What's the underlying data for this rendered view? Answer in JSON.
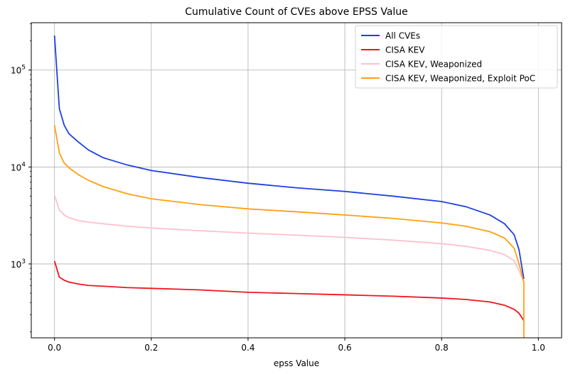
{
  "chart_data": {
    "type": "line",
    "title": "Cumulative Count of CVEs above EPSS Value",
    "xlabel": "epss Value",
    "ylabel": "",
    "xlim": [
      -0.048,
      1.048
    ],
    "ylim": [
      173,
      308000
    ],
    "yscale": "log",
    "grid": true,
    "legend_placement": "top-right",
    "xticks": [
      0.0,
      0.2,
      0.4,
      0.6,
      0.8,
      1.0
    ],
    "xtick_labels": [
      "0.0",
      "0.2",
      "0.4",
      "0.6",
      "0.8",
      "1.0"
    ],
    "yticks": [
      1000,
      10000,
      100000
    ],
    "ytick_labels": [
      {
        "base": "10",
        "exp": "3"
      },
      {
        "base": "10",
        "exp": "4"
      },
      {
        "base": "10",
        "exp": "5"
      }
    ],
    "x": [
      0,
      0.01,
      0.02,
      0.03,
      0.05,
      0.07,
      0.1,
      0.15,
      0.2,
      0.3,
      0.4,
      0.5,
      0.6,
      0.7,
      0.8,
      0.85,
      0.9,
      0.93,
      0.95,
      0.96,
      0.97
    ],
    "series": [
      {
        "name": "All CVEs",
        "color": "#1f3fe0",
        "values": [
          227000,
          40000,
          27000,
          22000,
          18000,
          15000,
          12500,
          10500,
          9200,
          7800,
          6800,
          6100,
          5600,
          5000,
          4400,
          3900,
          3200,
          2600,
          2000,
          1400,
          700
        ]
      },
      {
        "name": "CISA KEV",
        "color": "#f0141e",
        "values": [
          1070,
          730,
          680,
          650,
          620,
          600,
          590,
          570,
          560,
          540,
          510,
          495,
          480,
          465,
          445,
          430,
          405,
          375,
          340,
          310,
          260
        ]
      },
      {
        "name": "CISA KEV, Weaponized",
        "color": "#ffc0cb",
        "values": [
          5100,
          3600,
          3200,
          3000,
          2800,
          2700,
          2600,
          2450,
          2350,
          2200,
          2080,
          1980,
          1880,
          1760,
          1620,
          1520,
          1380,
          1250,
          1080,
          850,
          650
        ]
      },
      {
        "name": "CISA KEV, Weaponized, Exploit PoC",
        "color": "#ffa010",
        "values": [
          27000,
          14000,
          11000,
          9800,
          8300,
          7300,
          6300,
          5300,
          4700,
          4100,
          3700,
          3450,
          3200,
          2950,
          2650,
          2450,
          2150,
          1850,
          1450,
          1000,
          650
        ],
        "final_drop_to": 1
      }
    ]
  }
}
